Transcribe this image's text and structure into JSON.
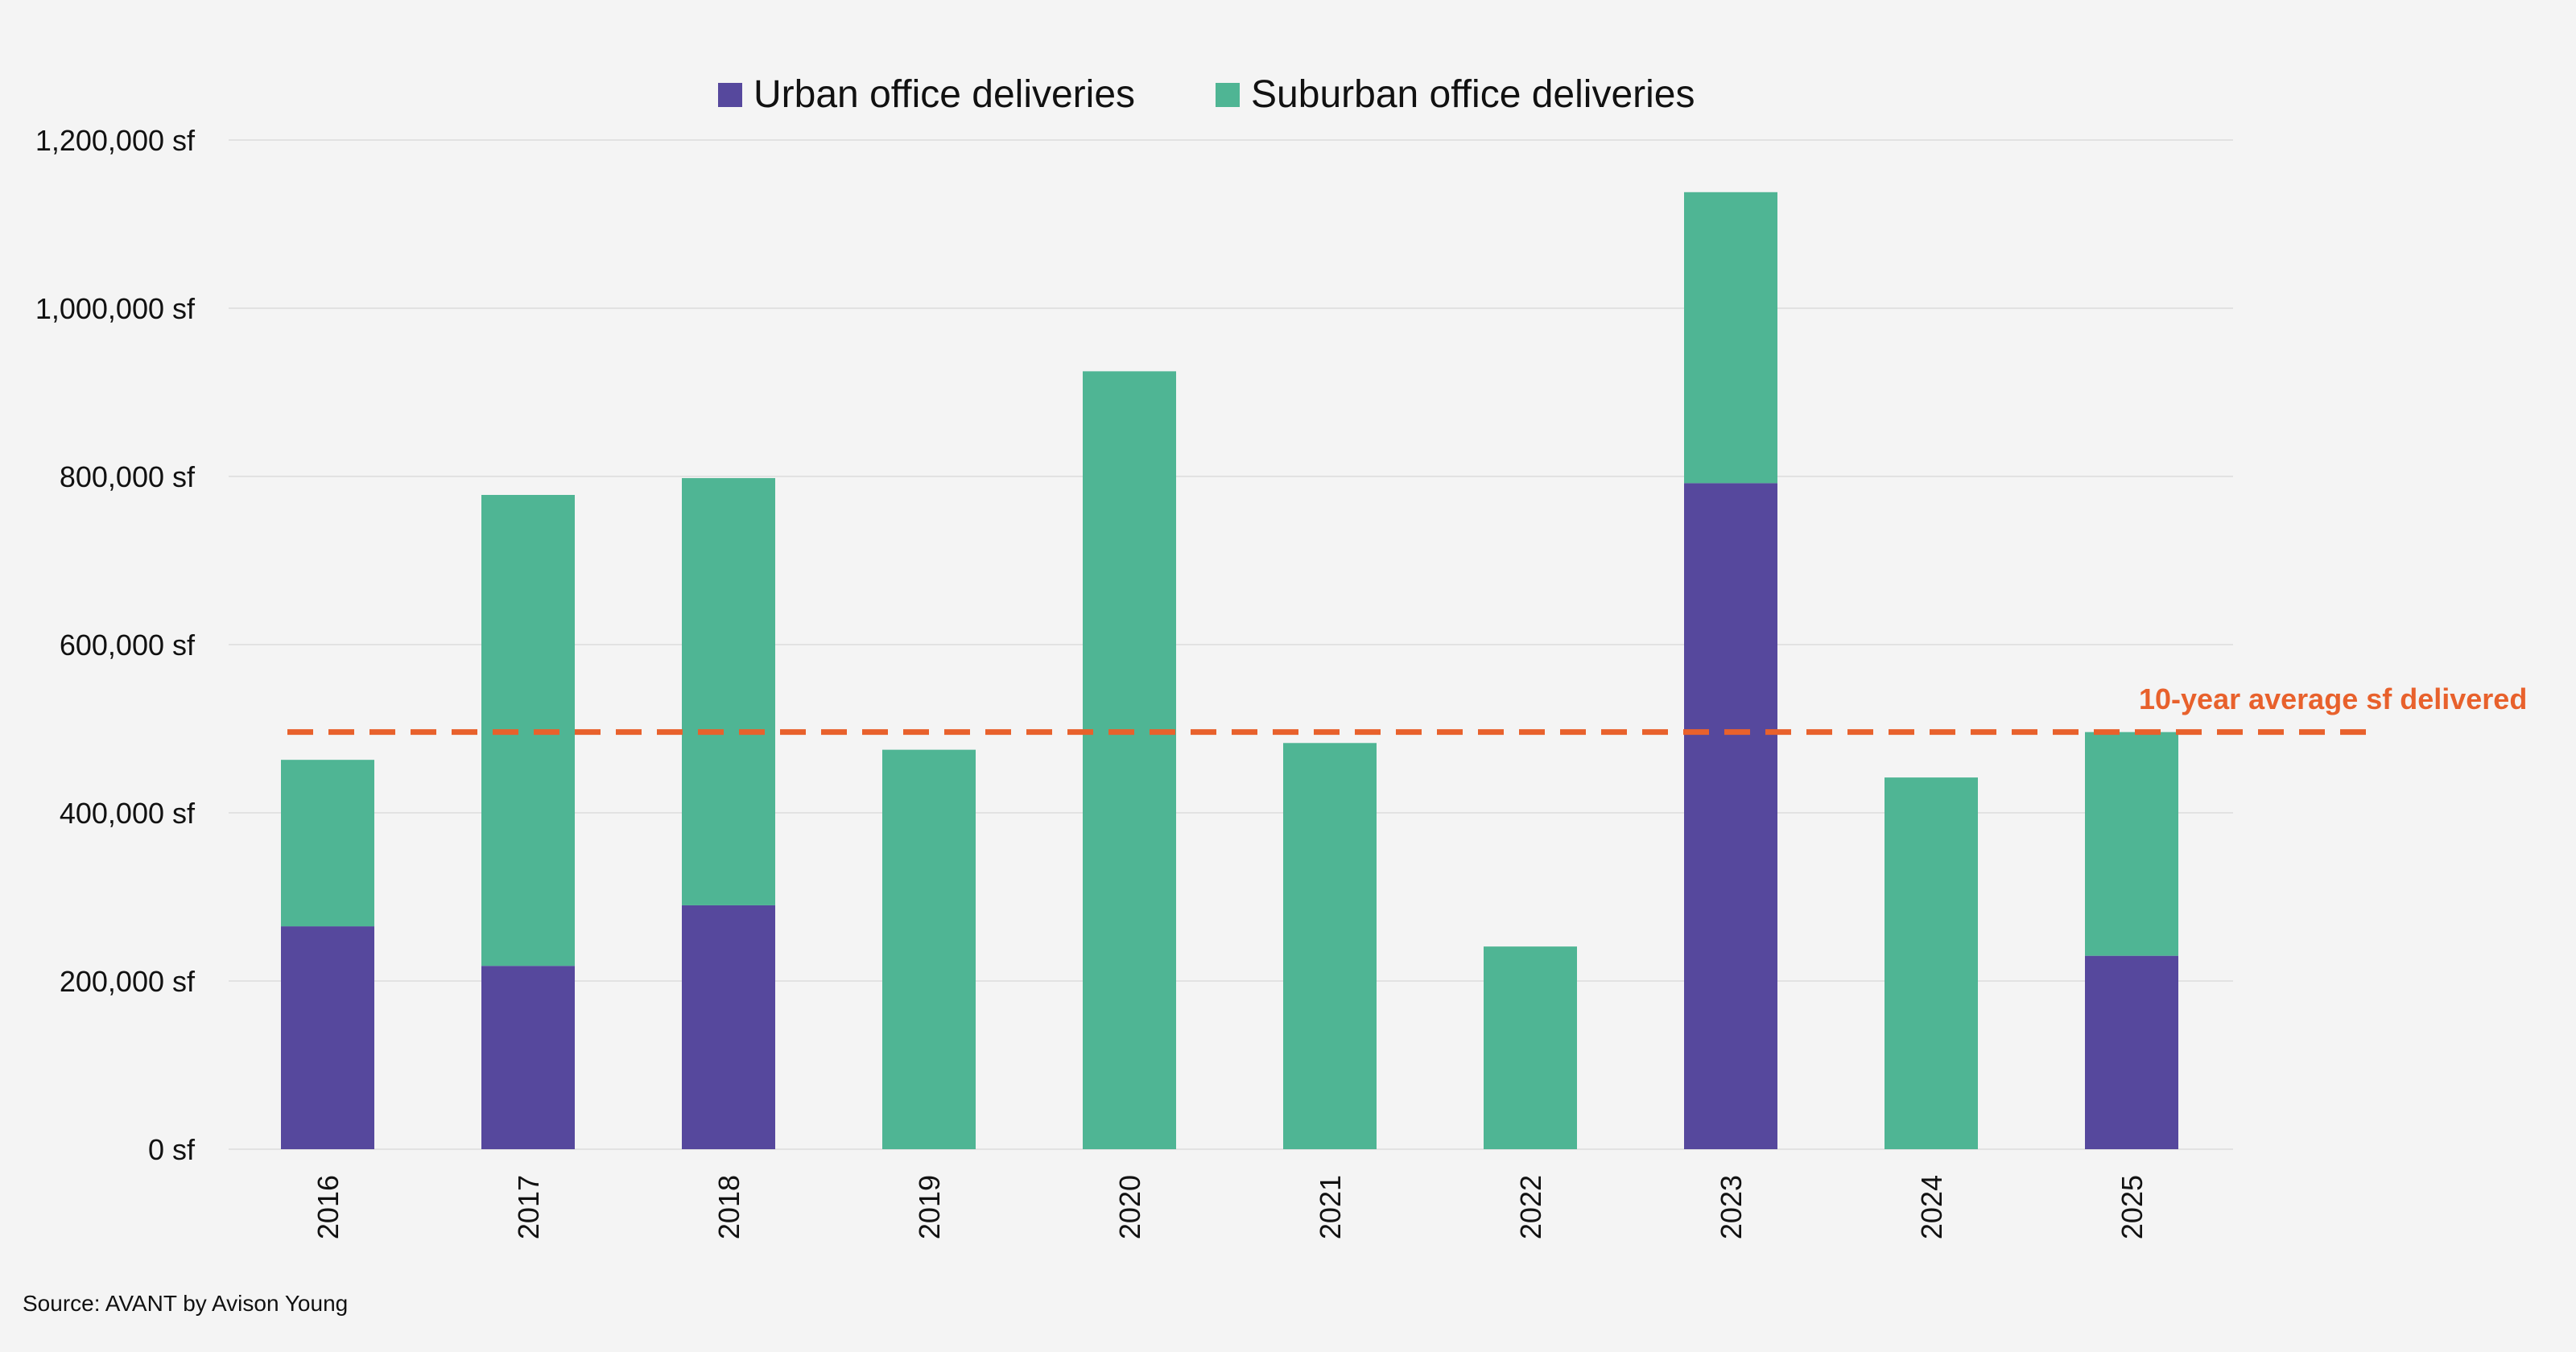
{
  "chart_data": {
    "type": "bar",
    "stacked": true,
    "title": "",
    "xlabel": "",
    "ylabel": "",
    "categories": [
      "2016",
      "2017",
      "2018",
      "2019",
      "2020",
      "2021",
      "2022",
      "2023",
      "2024",
      "2025"
    ],
    "series": [
      {
        "name": "Urban office deliveries",
        "color": "#56489d",
        "values": [
          265000,
          218000,
          290000,
          0,
          0,
          0,
          0,
          792000,
          0,
          230000
        ]
      },
      {
        "name": "Suburban office deliveries",
        "color": "#4fb594",
        "values": [
          198000,
          560000,
          508000,
          475000,
          925000,
          483000,
          241000,
          346000,
          442000,
          266000
        ]
      }
    ],
    "ylim": [
      0,
      1200000
    ],
    "yticks": [
      0,
      200000,
      400000,
      600000,
      800000,
      1000000,
      1200000
    ],
    "ytick_labels": [
      "0 sf",
      "200,000 sf",
      "400,000 sf",
      "600,000 sf",
      "800,000 sf",
      "1,000,000 sf",
      "1,200,000 sf"
    ],
    "reference_line": {
      "label": "10-year average sf delivered",
      "value": 496000,
      "color": "#e8612c",
      "style": "dashed"
    },
    "legend_position": "top-center",
    "grid": true,
    "gridline_color": "#e2e2e2",
    "x_label_rotation": "vertical"
  },
  "source_note": "Source: AVANT by Avison Young"
}
